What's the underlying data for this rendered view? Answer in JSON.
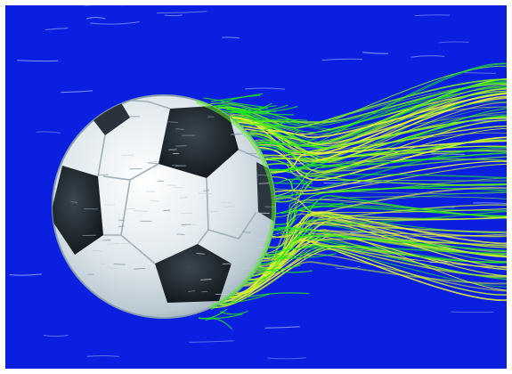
{
  "scene": {
    "background_color": "#0a1fe0",
    "ball": {
      "panel_color": "#e8eef2",
      "patch_color": "#1a1f24",
      "rim_color": "#b7c6cf"
    },
    "wake": {
      "colors": [
        "#22e81a",
        "#7df01e",
        "#c8f02a",
        "#eaf43a"
      ]
    },
    "freestream_color": "#9fb4f2"
  }
}
